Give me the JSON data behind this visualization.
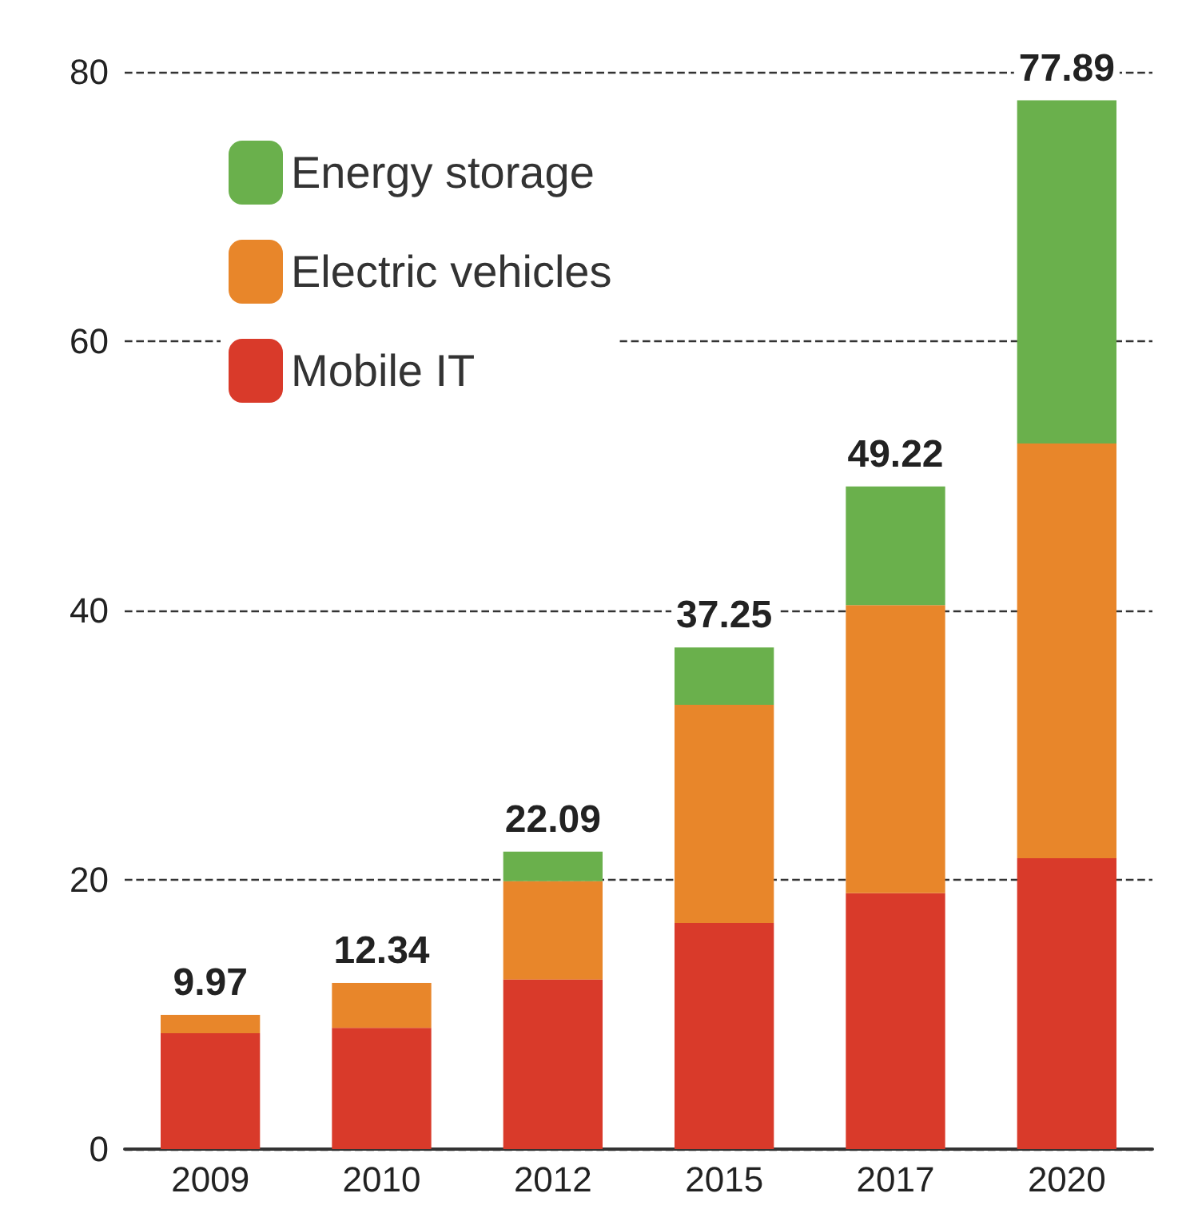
{
  "chart_data": {
    "type": "bar",
    "stacked": true,
    "categories": [
      "2009",
      "2010",
      "2012",
      "2015",
      "2017",
      "2020"
    ],
    "series": [
      {
        "name": "Mobile IT",
        "color": "#d93a2a",
        "values": [
          8.6,
          9.0,
          12.6,
          16.8,
          19.0,
          21.6
        ]
      },
      {
        "name": "Electric vehicles",
        "color": "#e8862a",
        "values": [
          1.37,
          3.34,
          7.3,
          16.2,
          21.4,
          30.8
        ]
      },
      {
        "name": "Energy storage",
        "color": "#6ab04c",
        "values": [
          0,
          0,
          2.19,
          4.25,
          8.82,
          25.49
        ]
      }
    ],
    "totals": [
      "9.97",
      "12.34",
      "22.09",
      "37.25",
      "49.22",
      "77.89"
    ],
    "ylim": [
      0,
      80
    ],
    "yticks": [
      0,
      20,
      40,
      60,
      80
    ],
    "grid": "y",
    "legend": "top left"
  }
}
